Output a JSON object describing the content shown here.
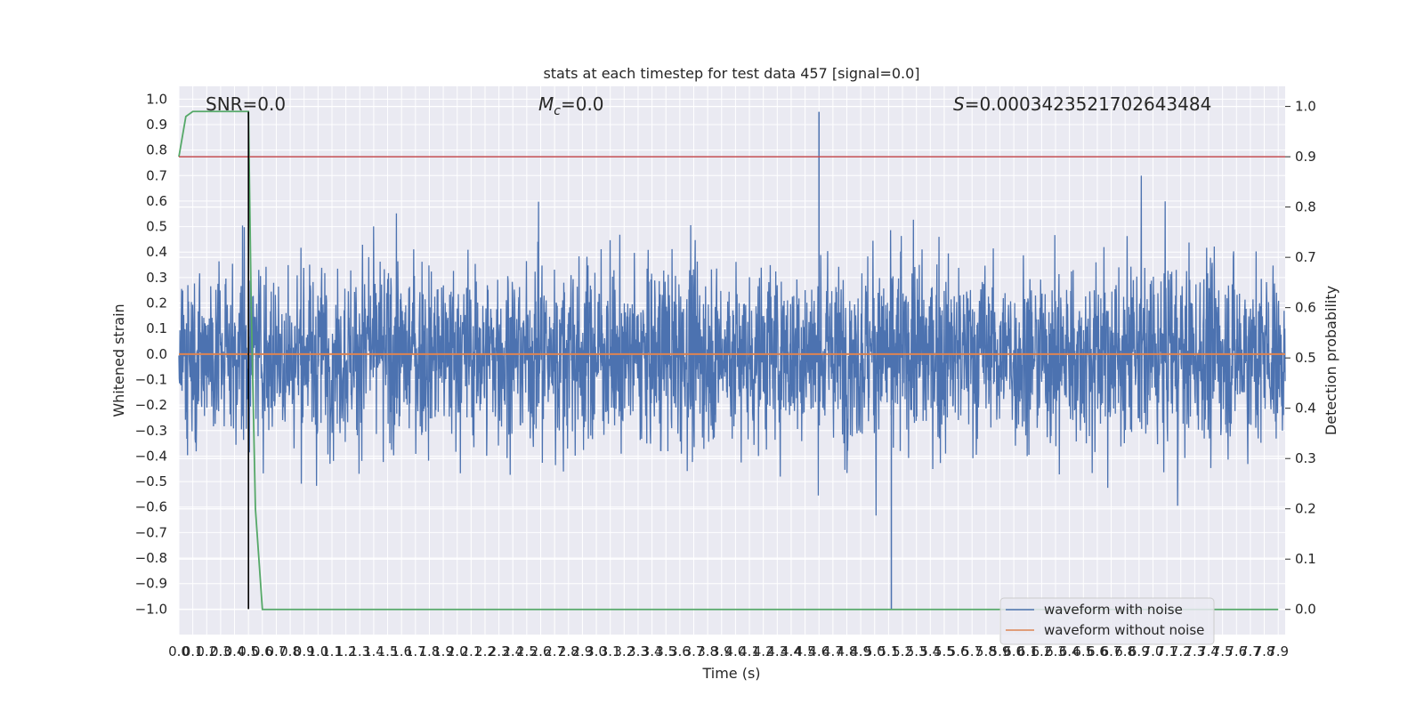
{
  "chart_data": {
    "type": "line",
    "title": "stats at each timestep for test data 457 [signal=0.0]",
    "xlabel": "Time (s)",
    "ylabel": "Whitened strain",
    "y2label": "Detection probability",
    "xlim": [
      0.0,
      7.95
    ],
    "ylim": [
      -1.1,
      1.05
    ],
    "y2lim": [
      -0.05,
      1.04
    ],
    "x_ticks": [
      0.0,
      0.1,
      0.2,
      0.3,
      0.4,
      0.5,
      0.6,
      0.7,
      0.8,
      0.9,
      1.0,
      1.1,
      1.2,
      1.3,
      1.4,
      1.5,
      1.6,
      1.7,
      1.8,
      1.9,
      2.0,
      2.1,
      2.2,
      2.3,
      2.4,
      2.5,
      2.6,
      2.7,
      2.8,
      2.9,
      3.0,
      3.1,
      3.2,
      3.3,
      3.4,
      3.5,
      3.6,
      3.7,
      3.8,
      3.9,
      4.0,
      4.1,
      4.2,
      4.3,
      4.4,
      4.5,
      4.6,
      4.7,
      4.8,
      4.9,
      5.0,
      5.1,
      5.2,
      5.3,
      5.4,
      5.5,
      5.6,
      5.7,
      5.8,
      5.9,
      6.0,
      6.1,
      6.2,
      6.3,
      6.4,
      6.5,
      6.6,
      6.7,
      6.8,
      6.9,
      7.0,
      7.1,
      7.2,
      7.3,
      7.4,
      7.5,
      7.6,
      7.7,
      7.8,
      7.9
    ],
    "x_tick_labels": [
      "0.0",
      "0.1",
      "0.2",
      "0.3",
      "0.4",
      "0.5",
      "0.6",
      "0.7",
      "0.8",
      "0.9",
      "1.0",
      "1.1",
      "1.2",
      "1.3",
      "1.4",
      "1.5",
      "1.6",
      "1.7",
      "1.8",
      "1.9",
      "2.0",
      "2.1",
      "2.2",
      "2.3",
      "2.4",
      "2.5",
      "2.6",
      "2.7",
      "2.8",
      "2.9",
      "3.0",
      "3.1",
      "3.2",
      "3.3",
      "3.4",
      "3.5",
      "3.6",
      "3.7",
      "3.8",
      "3.9",
      "4.0",
      "4.1",
      "4.2",
      "4.3",
      "4.4",
      "4.5",
      "4.6",
      "4.7",
      "4.8",
      "4.9",
      "5.0",
      "5.1",
      "5.2",
      "5.3",
      "5.4",
      "5.5",
      "5.6",
      "5.7",
      "5.8",
      "5.9",
      "6.0",
      "6.1",
      "6.2",
      "6.3",
      "6.4",
      "6.5",
      "6.6",
      "6.7",
      "6.8",
      "6.9",
      "7.0",
      "7.1",
      "7.2",
      "7.3",
      "7.4",
      "7.5",
      "7.6",
      "7.7",
      "7.8",
      "7.9"
    ],
    "y_ticks": [
      1.0,
      0.9,
      0.8,
      0.7,
      0.6,
      0.5,
      0.4,
      0.3,
      0.2,
      0.1,
      0.0,
      -0.1,
      -0.2,
      -0.3,
      -0.4,
      -0.5,
      -0.6,
      -0.7,
      -0.8,
      -0.9,
      -1.0
    ],
    "y_tick_labels": [
      "1.0",
      "0.9",
      "0.8",
      "0.7",
      "0.6",
      "0.5",
      "0.4",
      "0.3",
      "0.2",
      "0.1",
      "0.0",
      "−0.1",
      "−0.2",
      "−0.3",
      "−0.4",
      "−0.5",
      "−0.6",
      "−0.7",
      "−0.8",
      "−0.9",
      "−1.0"
    ],
    "y2_ticks": [
      1.0,
      0.9,
      0.8,
      0.7,
      0.6,
      0.5,
      0.4,
      0.3,
      0.2,
      0.1,
      0.0
    ],
    "y2_tick_labels": [
      "1.0",
      "0.9",
      "0.8",
      "0.7",
      "0.6",
      "0.5",
      "0.4",
      "0.3",
      "0.2",
      "0.1",
      "0.0"
    ],
    "grid": true,
    "legend_position": "bottom-right",
    "series": [
      {
        "name": "waveform with noise",
        "axis": "left",
        "color": "#4c72b0",
        "kind": "noise",
        "amplitude": 0.45,
        "extremes": [
          -1.0,
          0.95
        ]
      },
      {
        "name": "waveform without noise",
        "axis": "left",
        "color": "#dd8452",
        "kind": "constant",
        "value": 0.0
      },
      {
        "axis": "right",
        "color": "#55a868",
        "x": [
          0.0,
          0.05,
          0.1,
          0.2,
          0.3,
          0.4,
          0.48,
          0.5,
          0.52,
          0.55,
          0.6,
          1.0,
          2.0,
          3.0,
          4.0,
          5.0,
          6.0,
          7.0,
          7.9
        ],
        "y": [
          0.9,
          0.98,
          0.99,
          0.99,
          0.99,
          0.99,
          0.99,
          0.99,
          0.6,
          0.2,
          0.0,
          0.0,
          0.0,
          0.0,
          0.0,
          0.0,
          0.0,
          0.0,
          0.0
        ]
      },
      {
        "axis": "right",
        "color": "#c44e52",
        "kind": "threshold",
        "value": 0.9
      },
      {
        "axis": "left",
        "color": "#000000",
        "kind": "vline",
        "x": 0.5,
        "y_from": -1.0,
        "y_to": 0.95
      }
    ],
    "annotations": {
      "snr": "SNR=0.0",
      "mc_symbol": "M",
      "mc_sub": "c",
      "mc_value": "=0.0",
      "s_symbol": "S",
      "s_value": "=0.0003423521702643484"
    },
    "colors": {
      "axes_bg": "#eaeaf2",
      "grid": "#ffffff",
      "text": "#262626"
    }
  }
}
